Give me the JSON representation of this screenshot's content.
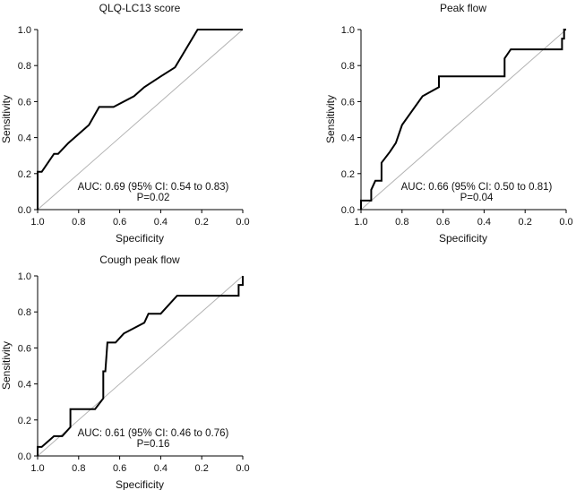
{
  "colors": {
    "roc_line": "#000000",
    "diagonal": "#b3b3b3",
    "axis": "#000000",
    "text": "#111111"
  },
  "chart_data": [
    {
      "type": "line",
      "title": "QLQ-LC13 score",
      "xlabel": "Specificity",
      "ylabel": "Sensitivity",
      "xlim": [
        1.0,
        0.0
      ],
      "ylim": [
        0.0,
        1.0
      ],
      "xticks": [
        "1.0",
        "0.8",
        "0.6",
        "0.4",
        "0.2",
        "0.0"
      ],
      "yticks": [
        "0.0",
        "0.2",
        "0.4",
        "0.6",
        "0.8",
        "1.0"
      ],
      "grid": false,
      "annotation": {
        "line1": "AUC: 0.69 (95% CI: 0.54 to 0.83)",
        "line2": "P=0.02"
      },
      "series": [
        {
          "name": "ROC",
          "specificity": [
            1.0,
            1.0,
            0.98,
            0.95,
            0.92,
            0.9,
            0.85,
            0.8,
            0.75,
            0.7,
            0.63,
            0.53,
            0.48,
            0.4,
            0.33,
            0.22,
            0.0
          ],
          "sensitivity": [
            0.0,
            0.21,
            0.21,
            0.26,
            0.31,
            0.31,
            0.37,
            0.42,
            0.47,
            0.57,
            0.57,
            0.63,
            0.68,
            0.74,
            0.79,
            1.0,
            1.0
          ]
        },
        {
          "name": "Reference",
          "specificity": [
            1.0,
            0.0
          ],
          "sensitivity": [
            0.0,
            1.0
          ]
        }
      ]
    },
    {
      "type": "line",
      "title": "Peak flow",
      "xlabel": "Specificity",
      "ylabel": "Sensitivity",
      "xlim": [
        1.0,
        0.0
      ],
      "ylim": [
        0.0,
        1.0
      ],
      "xticks": [
        "1.0",
        "0.8",
        "0.6",
        "0.4",
        "0.2",
        "0.0"
      ],
      "yticks": [
        "0.0",
        "0.2",
        "0.4",
        "0.6",
        "0.8",
        "1.0"
      ],
      "grid": false,
      "annotation": {
        "line1": "AUC: 0.66 (95% CI: 0.50 to 0.81)",
        "line2": "P=0.04"
      },
      "series": [
        {
          "name": "ROC",
          "specificity": [
            1.0,
            1.0,
            0.95,
            0.95,
            0.93,
            0.93,
            0.9,
            0.9,
            0.86,
            0.83,
            0.8,
            0.7,
            0.62,
            0.62,
            0.3,
            0.3,
            0.27,
            0.02,
            0.02,
            0.01,
            0.01,
            0.0
          ],
          "sensitivity": [
            0.0,
            0.05,
            0.05,
            0.11,
            0.16,
            0.16,
            0.16,
            0.26,
            0.32,
            0.37,
            0.47,
            0.63,
            0.68,
            0.74,
            0.74,
            0.84,
            0.89,
            0.89,
            0.95,
            0.95,
            1.0,
            1.0
          ]
        },
        {
          "name": "Reference",
          "specificity": [
            1.0,
            0.0
          ],
          "sensitivity": [
            0.0,
            1.0
          ]
        }
      ]
    },
    {
      "type": "line",
      "title": "Cough peak flow",
      "xlabel": "Specificity",
      "ylabel": "Sensitivity",
      "xlim": [
        1.0,
        0.0
      ],
      "ylim": [
        0.0,
        1.0
      ],
      "xticks": [
        "1.0",
        "0.8",
        "0.6",
        "0.4",
        "0.2",
        "0.0"
      ],
      "yticks": [
        "0.0",
        "0.2",
        "0.4",
        "0.6",
        "0.8",
        "1.0"
      ],
      "grid": false,
      "annotation": {
        "line1": "AUC: 0.61 (95% CI: 0.46 to 0.76)",
        "line2": "P=0.16"
      },
      "series": [
        {
          "name": "ROC",
          "specificity": [
            1.0,
            1.0,
            0.98,
            0.92,
            0.88,
            0.84,
            0.84,
            0.72,
            0.68,
            0.68,
            0.67,
            0.66,
            0.62,
            0.58,
            0.48,
            0.46,
            0.4,
            0.32,
            0.02,
            0.02,
            0.0,
            0.0
          ],
          "sensitivity": [
            0.0,
            0.05,
            0.05,
            0.11,
            0.11,
            0.16,
            0.26,
            0.26,
            0.32,
            0.47,
            0.47,
            0.63,
            0.63,
            0.68,
            0.74,
            0.79,
            0.79,
            0.89,
            0.89,
            0.95,
            0.95,
            1.0
          ]
        },
        {
          "name": "Reference",
          "specificity": [
            1.0,
            0.0
          ],
          "sensitivity": [
            0.0,
            1.0
          ]
        }
      ]
    }
  ]
}
